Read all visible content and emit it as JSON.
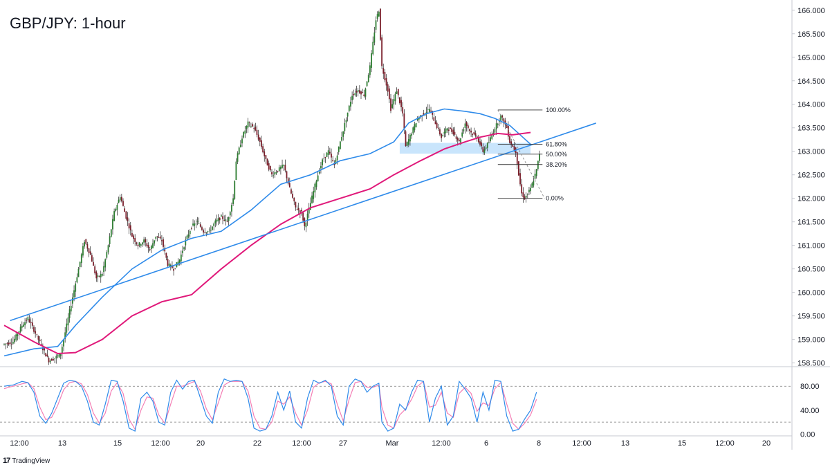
{
  "chart_data": {
    "type": "candlestick",
    "title": "GBP/JPY: 1-hour",
    "price_axis": {
      "ticks": [
        "166.000",
        "165.500",
        "165.000",
        "164.500",
        "164.000",
        "163.500",
        "163.000",
        "162.500",
        "162.000",
        "161.500",
        "161.000",
        "160.500",
        "160.000",
        "159.500",
        "159.000",
        "158.500"
      ],
      "range": [
        158.45,
        166.1
      ]
    },
    "time_axis": {
      "ticks": [
        "12:00",
        "13",
        "15",
        "12:00",
        "20",
        "22",
        "12:00",
        "27",
        "Mar",
        "12:00",
        "6",
        "8",
        "12:00",
        "13",
        "15",
        "12:00",
        "20"
      ]
    },
    "price_path": [
      [
        0,
        158.9
      ],
      [
        3,
        158.95
      ],
      [
        6,
        159.3
      ],
      [
        8,
        159.45
      ],
      [
        10,
        159.2
      ],
      [
        13,
        158.8
      ],
      [
        15,
        158.55
      ],
      [
        17,
        158.6
      ],
      [
        19,
        158.7
      ],
      [
        22,
        159.6
      ],
      [
        25,
        160.5
      ],
      [
        27,
        161.1
      ],
      [
        29,
        160.8
      ],
      [
        31,
        160.3
      ],
      [
        33,
        160.4
      ],
      [
        35,
        161.0
      ],
      [
        37,
        161.7
      ],
      [
        39,
        162.05
      ],
      [
        41,
        161.6
      ],
      [
        43,
        161.2
      ],
      [
        45,
        161.0
      ],
      [
        47,
        161.1
      ],
      [
        49,
        160.9
      ],
      [
        51,
        161.2
      ],
      [
        53,
        161.1
      ],
      [
        55,
        160.6
      ],
      [
        57,
        160.5
      ],
      [
        59,
        160.7
      ],
      [
        61,
        161.1
      ],
      [
        63,
        161.4
      ],
      [
        65,
        161.5
      ],
      [
        67,
        161.3
      ],
      [
        69,
        161.3
      ],
      [
        71,
        161.5
      ],
      [
        73,
        161.6
      ],
      [
        75,
        161.5
      ],
      [
        77,
        162.0
      ],
      [
        78,
        162.8
      ],
      [
        80,
        163.3
      ],
      [
        82,
        163.6
      ],
      [
        84,
        163.5
      ],
      [
        86,
        163.2
      ],
      [
        88,
        162.8
      ],
      [
        90,
        162.5
      ],
      [
        92,
        162.6
      ],
      [
        94,
        162.7
      ],
      [
        96,
        162.2
      ],
      [
        98,
        161.8
      ],
      [
        100,
        161.7
      ],
      [
        101,
        161.4
      ],
      [
        103,
        161.9
      ],
      [
        105,
        162.4
      ],
      [
        107,
        162.8
      ],
      [
        109,
        163.0
      ],
      [
        111,
        162.7
      ],
      [
        113,
        163.2
      ],
      [
        115,
        163.7
      ],
      [
        117,
        164.2
      ],
      [
        119,
        164.3
      ],
      [
        121,
        164.2
      ],
      [
        123,
        164.8
      ],
      [
        125,
        165.8
      ],
      [
        126,
        166.0
      ],
      [
        127,
        164.8
      ],
      [
        129,
        164.3
      ],
      [
        130,
        163.9
      ],
      [
        132,
        164.3
      ],
      [
        134,
        163.8
      ],
      [
        135,
        163.1
      ],
      [
        137,
        163.4
      ],
      [
        139,
        163.7
      ],
      [
        141,
        163.8
      ],
      [
        143,
        163.9
      ],
      [
        145,
        163.6
      ],
      [
        147,
        163.3
      ],
      [
        149,
        163.5
      ],
      [
        151,
        163.4
      ],
      [
        153,
        163.2
      ],
      [
        155,
        163.6
      ],
      [
        157,
        163.4
      ],
      [
        159,
        163.3
      ],
      [
        161,
        163.0
      ],
      [
        163,
        163.2
      ],
      [
        165,
        163.5
      ],
      [
        167,
        163.75
      ],
      [
        169,
        163.5
      ],
      [
        170,
        163.2
      ],
      [
        172,
        163.0
      ],
      [
        173,
        162.5
      ],
      [
        174,
        162.1
      ],
      [
        175,
        162.0
      ],
      [
        177,
        162.2
      ],
      [
        179,
        162.6
      ],
      [
        180,
        162.95
      ]
    ],
    "ma_blue": [
      [
        0,
        158.65
      ],
      [
        10,
        158.8
      ],
      [
        18,
        158.85
      ],
      [
        24,
        159.3
      ],
      [
        33,
        159.9
      ],
      [
        43,
        160.5
      ],
      [
        53,
        160.9
      ],
      [
        63,
        161.15
      ],
      [
        73,
        161.3
      ],
      [
        83,
        161.75
      ],
      [
        93,
        162.3
      ],
      [
        103,
        162.5
      ],
      [
        113,
        162.8
      ],
      [
        123,
        162.95
      ],
      [
        131,
        163.2
      ],
      [
        136,
        163.6
      ],
      [
        142,
        163.8
      ],
      [
        148,
        163.9
      ],
      [
        155,
        163.85
      ],
      [
        160,
        163.8
      ],
      [
        165,
        163.7
      ],
      [
        170,
        163.55
      ],
      [
        177,
        163.15
      ]
    ],
    "ma_pink": [
      [
        0,
        159.3
      ],
      [
        10,
        158.95
      ],
      [
        18,
        158.7
      ],
      [
        24,
        158.72
      ],
      [
        33,
        159.0
      ],
      [
        43,
        159.5
      ],
      [
        53,
        159.8
      ],
      [
        63,
        159.95
      ],
      [
        73,
        160.5
      ],
      [
        83,
        161.0
      ],
      [
        93,
        161.45
      ],
      [
        103,
        161.8
      ],
      [
        113,
        162.0
      ],
      [
        123,
        162.2
      ],
      [
        131,
        162.5
      ],
      [
        140,
        162.8
      ],
      [
        148,
        163.05
      ],
      [
        155,
        163.2
      ],
      [
        160,
        163.3
      ],
      [
        166,
        163.38
      ],
      [
        171,
        163.35
      ],
      [
        177,
        163.4
      ]
    ],
    "trendline": [
      [
        2,
        159.4
      ],
      [
        199,
        163.6
      ]
    ],
    "zone": {
      "x1": 133,
      "x2": 177,
      "low": 162.95,
      "high": 163.18
    },
    "fib_levels": [
      {
        "label": "100.00%",
        "value": 163.88
      },
      {
        "label": "61.80%",
        "value": 163.15
      },
      {
        "label": "50.00%",
        "value": 162.94
      },
      {
        "label": "38.20%",
        "value": 162.72
      },
      {
        "label": "0.00%",
        "value": 162.0
      }
    ],
    "stoch": {
      "ticks": [
        "80.00",
        "40.00",
        "0.00"
      ],
      "range": [
        -3,
        108
      ],
      "upper_band": 80,
      "lower_band": 20,
      "k": [
        [
          0,
          80
        ],
        [
          3,
          82
        ],
        [
          6,
          88
        ],
        [
          8,
          86
        ],
        [
          10,
          70
        ],
        [
          12,
          30
        ],
        [
          14,
          18
        ],
        [
          16,
          35
        ],
        [
          18,
          60
        ],
        [
          20,
          85
        ],
        [
          22,
          90
        ],
        [
          24,
          88
        ],
        [
          26,
          80
        ],
        [
          28,
          55
        ],
        [
          30,
          20
        ],
        [
          32,
          15
        ],
        [
          34,
          50
        ],
        [
          36,
          90
        ],
        [
          38,
          88
        ],
        [
          40,
          55
        ],
        [
          42,
          10
        ],
        [
          44,
          5
        ],
        [
          46,
          60
        ],
        [
          48,
          70
        ],
        [
          50,
          55
        ],
        [
          52,
          20
        ],
        [
          54,
          15
        ],
        [
          56,
          70
        ],
        [
          58,
          90
        ],
        [
          60,
          75
        ],
        [
          62,
          88
        ],
        [
          64,
          90
        ],
        [
          66,
          60
        ],
        [
          68,
          30
        ],
        [
          70,
          18
        ],
        [
          72,
          70
        ],
        [
          74,
          92
        ],
        [
          76,
          88
        ],
        [
          78,
          90
        ],
        [
          80,
          88
        ],
        [
          82,
          60
        ],
        [
          84,
          10
        ],
        [
          86,
          5
        ],
        [
          88,
          8
        ],
        [
          90,
          30
        ],
        [
          92,
          70
        ],
        [
          94,
          40
        ],
        [
          96,
          72
        ],
        [
          98,
          20
        ],
        [
          100,
          10
        ],
        [
          102,
          60
        ],
        [
          104,
          90
        ],
        [
          106,
          85
        ],
        [
          108,
          90
        ],
        [
          110,
          80
        ],
        [
          112,
          30
        ],
        [
          114,
          15
        ],
        [
          116,
          80
        ],
        [
          118,
          92
        ],
        [
          120,
          88
        ],
        [
          122,
          70
        ],
        [
          124,
          80
        ],
        [
          126,
          85
        ],
        [
          127,
          20
        ],
        [
          129,
          5
        ],
        [
          131,
          10
        ],
        [
          133,
          50
        ],
        [
          135,
          40
        ],
        [
          137,
          70
        ],
        [
          139,
          90
        ],
        [
          141,
          88
        ],
        [
          143,
          20
        ],
        [
          145,
          60
        ],
        [
          147,
          80
        ],
        [
          149,
          15
        ],
        [
          151,
          30
        ],
        [
          153,
          88
        ],
        [
          155,
          75
        ],
        [
          157,
          60
        ],
        [
          159,
          20
        ],
        [
          161,
          70
        ],
        [
          163,
          40
        ],
        [
          165,
          90
        ],
        [
          167,
          88
        ],
        [
          169,
          30
        ],
        [
          171,
          5
        ],
        [
          173,
          8
        ],
        [
          175,
          25
        ],
        [
          177,
          40
        ],
        [
          179,
          70
        ]
      ],
      "d": [
        [
          0,
          76
        ],
        [
          3,
          80
        ],
        [
          6,
          84
        ],
        [
          8,
          86
        ],
        [
          10,
          76
        ],
        [
          12,
          45
        ],
        [
          14,
          24
        ],
        [
          16,
          28
        ],
        [
          18,
          48
        ],
        [
          20,
          74
        ],
        [
          22,
          86
        ],
        [
          24,
          88
        ],
        [
          26,
          84
        ],
        [
          28,
          66
        ],
        [
          30,
          35
        ],
        [
          32,
          18
        ],
        [
          34,
          35
        ],
        [
          36,
          72
        ],
        [
          38,
          86
        ],
        [
          40,
          68
        ],
        [
          42,
          25
        ],
        [
          44,
          8
        ],
        [
          46,
          40
        ],
        [
          48,
          62
        ],
        [
          50,
          60
        ],
        [
          52,
          32
        ],
        [
          54,
          18
        ],
        [
          56,
          50
        ],
        [
          58,
          80
        ],
        [
          60,
          80
        ],
        [
          62,
          84
        ],
        [
          64,
          88
        ],
        [
          66,
          72
        ],
        [
          68,
          42
        ],
        [
          70,
          24
        ],
        [
          72,
          52
        ],
        [
          74,
          82
        ],
        [
          76,
          88
        ],
        [
          78,
          88
        ],
        [
          80,
          88
        ],
        [
          82,
          72
        ],
        [
          84,
          30
        ],
        [
          86,
          10
        ],
        [
          88,
          8
        ],
        [
          90,
          20
        ],
        [
          92,
          55
        ],
        [
          94,
          50
        ],
        [
          96,
          62
        ],
        [
          98,
          35
        ],
        [
          100,
          15
        ],
        [
          102,
          40
        ],
        [
          104,
          78
        ],
        [
          106,
          86
        ],
        [
          108,
          88
        ],
        [
          110,
          84
        ],
        [
          112,
          50
        ],
        [
          114,
          22
        ],
        [
          116,
          58
        ],
        [
          118,
          86
        ],
        [
          120,
          88
        ],
        [
          122,
          78
        ],
        [
          124,
          78
        ],
        [
          126,
          82
        ],
        [
          127,
          45
        ],
        [
          129,
          15
        ],
        [
          131,
          10
        ],
        [
          133,
          32
        ],
        [
          135,
          42
        ],
        [
          137,
          58
        ],
        [
          139,
          80
        ],
        [
          141,
          88
        ],
        [
          143,
          45
        ],
        [
          145,
          48
        ],
        [
          147,
          70
        ],
        [
          149,
          35
        ],
        [
          151,
          28
        ],
        [
          153,
          68
        ],
        [
          155,
          78
        ],
        [
          157,
          68
        ],
        [
          159,
          38
        ],
        [
          161,
          52
        ],
        [
          163,
          48
        ],
        [
          165,
          76
        ],
        [
          167,
          86
        ],
        [
          169,
          50
        ],
        [
          171,
          18
        ],
        [
          173,
          8
        ],
        [
          175,
          18
        ],
        [
          177,
          32
        ],
        [
          179,
          58
        ]
      ]
    }
  },
  "colors": {
    "up_candle": "#2e7d32",
    "down_candle": "#7a1f2b",
    "ma_blue": "#2f8bea",
    "ma_pink": "#e0197a",
    "trendline": "#2f8bea",
    "zone": "#bbdefb",
    "stoch_k": "#2f8bea",
    "stoch_d": "#f47fb5"
  },
  "branding": {
    "logo_text": "TradingView",
    "logo_mark": "17"
  }
}
